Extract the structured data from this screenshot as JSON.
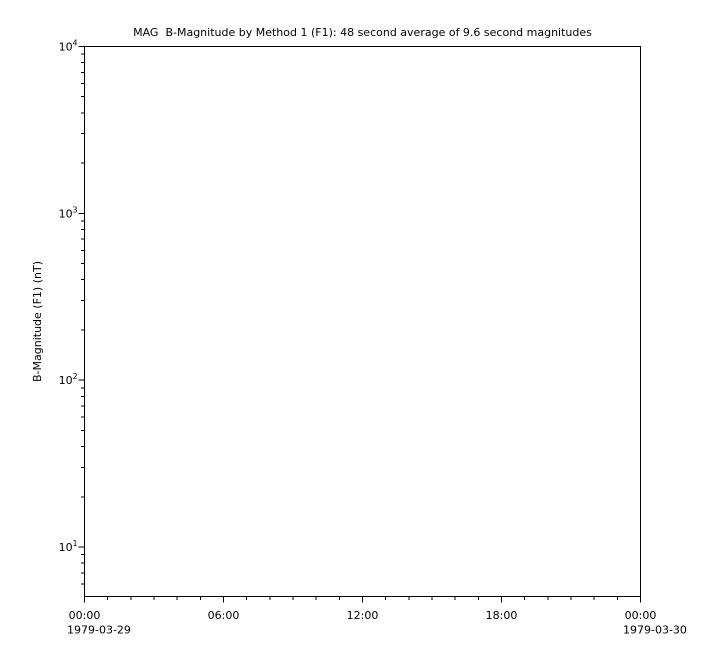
{
  "chart_data": {
    "type": "line",
    "title": "MAG  B-Magnitude by Method 1 (F1): 48 second average of 9.6 second magnitudes",
    "ylabel": "B-Magnitude (F1) (nT)",
    "xlabel": "",
    "y_scale": "log",
    "ylim": [
      5.05,
      10000
    ],
    "xlim_hours": [
      0,
      24
    ],
    "x_minor_step_hours": 1,
    "grid": false,
    "legend": null,
    "series": [],
    "y_major_ticks": [
      {
        "base": "10",
        "exp": "1",
        "value": 10
      },
      {
        "base": "10",
        "exp": "2",
        "value": 100
      },
      {
        "base": "10",
        "exp": "3",
        "value": 1000
      },
      {
        "base": "10",
        "exp": "4",
        "value": 10000
      }
    ],
    "x_major_ticks": [
      {
        "hour": 0,
        "label": "00:00",
        "date": "1979-03-29"
      },
      {
        "hour": 6,
        "label": "06:00"
      },
      {
        "hour": 12,
        "label": "12:00"
      },
      {
        "hour": 18,
        "label": "18:00"
      },
      {
        "hour": 24,
        "label": "00:00",
        "date": "1979-03-30"
      }
    ],
    "colors": {
      "background": "#ffffff",
      "axis": "#000000",
      "text": "#000000"
    }
  }
}
